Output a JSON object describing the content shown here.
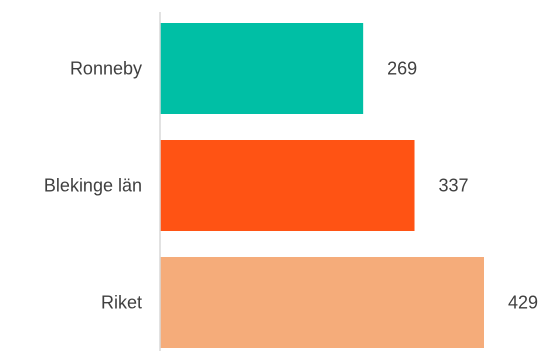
{
  "chart_data": {
    "type": "bar",
    "orientation": "horizontal",
    "categories": [
      "Ronneby",
      "Blekinge län",
      "Riket"
    ],
    "values": [
      269,
      337,
      429
    ],
    "colors": [
      "#00BFA5",
      "#FF5314",
      "#F5AC7A"
    ],
    "xlim": [
      0,
      429
    ],
    "title": "",
    "xlabel": "",
    "ylabel": "",
    "grid": false,
    "legend": "none"
  }
}
